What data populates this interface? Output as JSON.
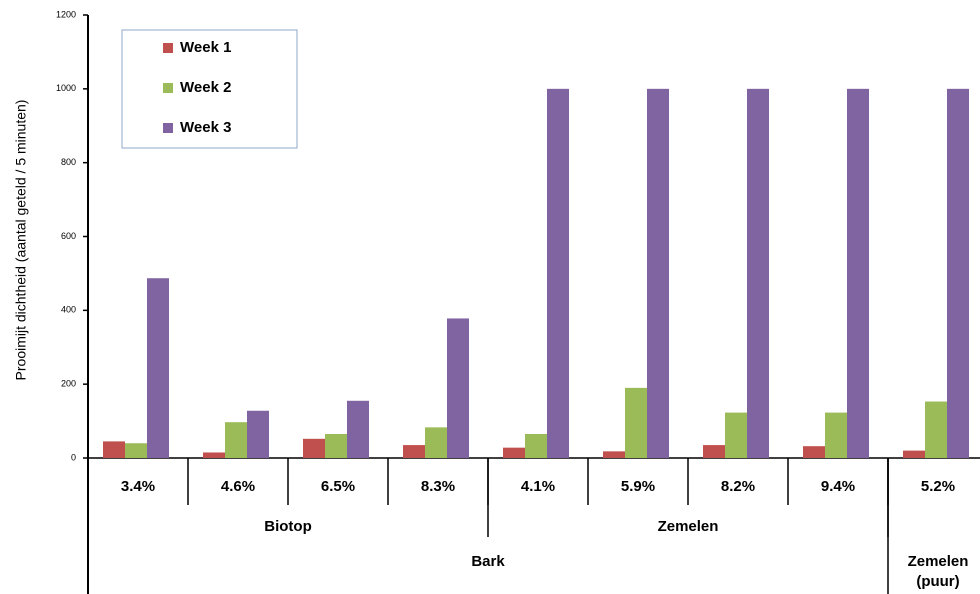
{
  "chart_data": {
    "type": "bar",
    "y_label": "Prooimijt dichtheid (aantal geteld / 5 minuten)",
    "categories": [
      "3.4%",
      "4.6%",
      "6.5%",
      "8.3%",
      "4.1%",
      "5.9%",
      "8.2%",
      "9.4%",
      "5.2%"
    ],
    "groups": [
      {
        "label": "Biotop",
        "span": 4
      },
      {
        "label": "Zemelen",
        "span": 4
      }
    ],
    "supergroups": [
      {
        "label": "Bark",
        "span": 8
      },
      {
        "label": "Zemelen (puur)",
        "span": 1
      }
    ],
    "series": [
      {
        "name": "Week 1",
        "color": "#c0504d",
        "values": [
          45,
          15,
          52,
          35,
          28,
          18,
          35,
          32,
          20
        ]
      },
      {
        "name": "Week 2",
        "color": "#9bbb59",
        "values": [
          40,
          97,
          65,
          83,
          65,
          190,
          123,
          123,
          153
        ]
      },
      {
        "name": "Week 3",
        "color": "#8064a2",
        "values": [
          487,
          128,
          155,
          378,
          1000,
          1000,
          1000,
          1000,
          1000
        ]
      }
    ],
    "ylim": [
      0,
      1200
    ],
    "yticks": [
      0,
      200,
      400,
      600,
      800,
      1000,
      1200
    ],
    "grid": false,
    "legend": "upper left"
  }
}
